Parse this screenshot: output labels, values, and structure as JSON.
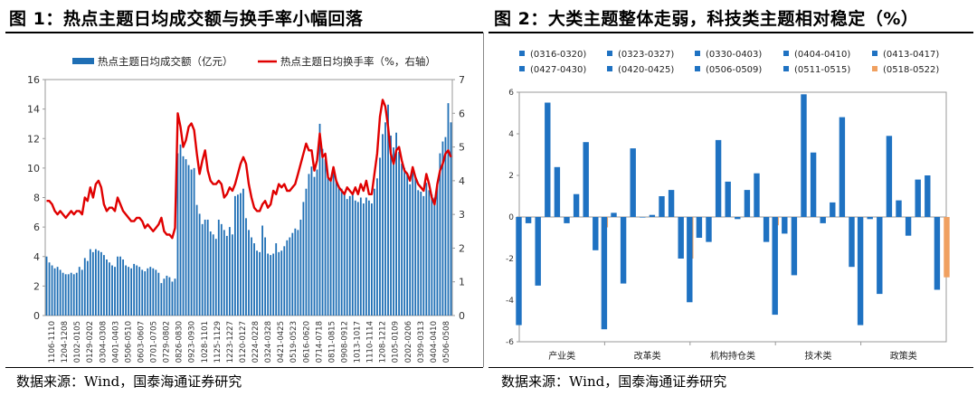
{
  "figures": [
    {
      "title": "图 1：热点主题日均成交额与换手率小幅回落",
      "source": "数据来源：Wind，国泰海通证券研究"
    },
    {
      "title": "图 2：大类主题整体走弱，科技类主题相对稳定（%）",
      "source": "数据来源：Wind，国泰海通证券研究"
    }
  ],
  "chart_data": [
    {
      "type": "bar+line",
      "title": "热点主题日均成交额与换手率小幅回落",
      "series": [
        {
          "name": "热点主题日均成交额（亿元）",
          "type": "bar",
          "axis": "left",
          "color": "#1f6fb5",
          "values": [
            4.0,
            3.6,
            3.4,
            3.2,
            3.3,
            3.1,
            2.9,
            2.8,
            2.8,
            2.9,
            2.8,
            2.9,
            3.3,
            3.1,
            3.9,
            3.7,
            4.5,
            4.3,
            4.5,
            4.4,
            4.3,
            4.1,
            3.8,
            3.6,
            3.4,
            3.3,
            4.0,
            4.0,
            3.8,
            3.4,
            3.3,
            3.2,
            3.5,
            3.4,
            3.3,
            3.1,
            3.0,
            3.2,
            3.3,
            3.2,
            3.1,
            2.9,
            2.2,
            2.5,
            2.7,
            2.6,
            2.3,
            2.5,
            11.0,
            11.6,
            10.8,
            10.6,
            10.2,
            9.9,
            10.0,
            7.5,
            6.9,
            6.2,
            6.5,
            6.5,
            5.7,
            5.5,
            5.2,
            6.5,
            6.2,
            5.8,
            5.4,
            6.0,
            5.5,
            8.1,
            8.2,
            8.3,
            8.6,
            6.6,
            5.8,
            5.3,
            4.9,
            4.4,
            4.3,
            6.1,
            5.3,
            4.2,
            4.1,
            4.2,
            4.9,
            4.3,
            4.4,
            4.7,
            5.1,
            5.3,
            5.6,
            5.9,
            5.8,
            6.5,
            7.7,
            8.6,
            9.6,
            10.1,
            9.4,
            9.9,
            13.0,
            11.3,
            10.6,
            9.6,
            9.2,
            9.8,
            9.2,
            8.8,
            8.6,
            8.4,
            7.9,
            8.1,
            8.2,
            7.8,
            7.7,
            8.0,
            7.6,
            8.0,
            7.8,
            7.6,
            8.6,
            9.3,
            10.7,
            12.3,
            13.1,
            14.3,
            12.2,
            11.4,
            12.4,
            11.1,
            10.3,
            10.0,
            9.7,
            8.9,
            9.8,
            9.4,
            8.5,
            8.4,
            8.1,
            9.0,
            8.5,
            8.2,
            8.0,
            8.8,
            11.0,
            11.8,
            12.1,
            14.4,
            13.1
          ]
        },
        {
          "name": "热点主题日均换手率（%，右轴）",
          "type": "line",
          "axis": "right",
          "color": "#e00000",
          "values": [
            3.4,
            3.4,
            3.3,
            3.1,
            3.0,
            3.1,
            3.0,
            2.9,
            3.0,
            3.1,
            3.0,
            3.1,
            3.1,
            3.0,
            3.5,
            3.4,
            3.8,
            3.5,
            3.9,
            4.0,
            3.8,
            3.3,
            3.1,
            3.2,
            3.2,
            3.1,
            3.5,
            3.3,
            3.1,
            3.0,
            2.9,
            2.8,
            2.8,
            2.9,
            2.9,
            2.8,
            2.6,
            2.7,
            2.6,
            2.5,
            2.6,
            2.7,
            2.9,
            2.5,
            2.4,
            2.4,
            2.3,
            2.6,
            6.0,
            5.6,
            5.0,
            5.2,
            5.6,
            5.7,
            5.5,
            4.8,
            4.2,
            4.6,
            4.9,
            4.3,
            4.0,
            3.9,
            3.9,
            4.0,
            3.9,
            3.5,
            3.6,
            3.8,
            3.7,
            3.9,
            4.2,
            4.5,
            4.7,
            4.5,
            3.9,
            3.5,
            3.2,
            3.1,
            3.1,
            3.3,
            3.4,
            3.2,
            3.3,
            3.7,
            3.6,
            3.9,
            3.8,
            3.9,
            3.7,
            3.7,
            3.8,
            3.9,
            4.2,
            4.5,
            4.8,
            5.1,
            4.9,
            4.9,
            4.3,
            4.6,
            5.4,
            4.7,
            4.8,
            4.1,
            4.0,
            4.4,
            4.0,
            3.8,
            3.7,
            3.6,
            3.8,
            3.7,
            3.6,
            3.8,
            3.6,
            3.9,
            3.7,
            4.0,
            3.6,
            3.6,
            4.2,
            4.8,
            5.9,
            6.4,
            6.2,
            5.6,
            4.8,
            4.5,
            4.9,
            5.0,
            4.6,
            4.3,
            4.2,
            4.0,
            4.4,
            4.1,
            3.9,
            3.8,
            3.7,
            4.2,
            3.9,
            3.5,
            3.3,
            3.9,
            4.3,
            4.5,
            4.8,
            4.9,
            4.7
          ]
        }
      ],
      "x_tick_labels": [
        "1106-1110",
        "1204-1208",
        "0102-0105",
        "0129-0202",
        "0304-0308",
        "0401-0403",
        "0506-0510",
        "0603-0607",
        "0701-0705",
        "0729-0802",
        "0826-0830",
        "0923-0930",
        "1028-1101",
        "1125-1129",
        "1223-1227",
        "0120-0127",
        "0224-0228",
        "0324-0328",
        "0421-0425",
        "0519-0523",
        "0616-0620",
        "0714-0718",
        "0811-0815",
        "0908-0912",
        "1013-1017",
        "1110-1114",
        "1208-1212",
        "0105-0109",
        "0202-0206",
        "0309-0313",
        "0404-0410",
        "0506-0508"
      ],
      "y_left": {
        "lim": [
          0,
          16
        ],
        "ticks": [
          0,
          2,
          4,
          6,
          8,
          10,
          12,
          14,
          16
        ]
      },
      "y_right": {
        "lim": [
          0,
          7
        ],
        "ticks": [
          0,
          1,
          2,
          3,
          4,
          5,
          6,
          7
        ]
      },
      "grid": false,
      "legend": "top"
    },
    {
      "type": "bar",
      "title": "大类主题整体走弱，科技类主题相对稳定（%）",
      "categories": [
        "产业类",
        "改革类",
        "机构持仓类",
        "技术类",
        "政策类"
      ],
      "series": [
        {
          "name": "(0316-0320)",
          "color": "#1f72c2",
          "values": [
            -5.2,
            -5.4,
            -4.1,
            -4.7,
            -5.2
          ]
        },
        {
          "name": "(0323-0327)",
          "color": "#1f72c2",
          "values": [
            -0.3,
            0.2,
            -1.0,
            -0.8,
            -0.1
          ]
        },
        {
          "name": "(0330-0403)",
          "color": "#1f72c2",
          "values": [
            -3.3,
            -3.2,
            -1.2,
            -2.8,
            -3.7
          ]
        },
        {
          "name": "(0404-0410)",
          "color": "#1f72c2",
          "values": [
            5.5,
            3.3,
            3.7,
            5.9,
            3.9
          ]
        },
        {
          "name": "(0413-0417)",
          "color": "#1f72c2",
          "values": [
            2.4,
            0.0,
            1.7,
            3.1,
            0.8
          ]
        },
        {
          "name": "(0427-0430)",
          "color": "#1f72c2",
          "values": [
            -0.3,
            0.1,
            -0.1,
            -0.3,
            -0.9
          ]
        },
        {
          "name": "(0420-0425)",
          "color": "#1f72c2",
          "values": [
            1.1,
            1.0,
            1.3,
            0.7,
            1.8
          ]
        },
        {
          "name": "(0506-0509)",
          "color": "#1f72c2",
          "values": [
            3.6,
            1.3,
            2.1,
            4.8,
            2.0
          ]
        },
        {
          "name": "(0511-0515)",
          "color": "#1f72c2",
          "values": [
            -1.6,
            -2.0,
            -1.2,
            -2.4,
            -3.5
          ]
        },
        {
          "name": "(0518-0522)",
          "color": "#f0a060",
          "values": [
            -0.5,
            -2.0,
            -0.4,
            0.0,
            -2.9
          ]
        }
      ],
      "ylim": [
        -6,
        6
      ],
      "yticks": [
        -6,
        -4,
        -2,
        0,
        2,
        4,
        6
      ],
      "grid": false,
      "legend": "top"
    }
  ]
}
